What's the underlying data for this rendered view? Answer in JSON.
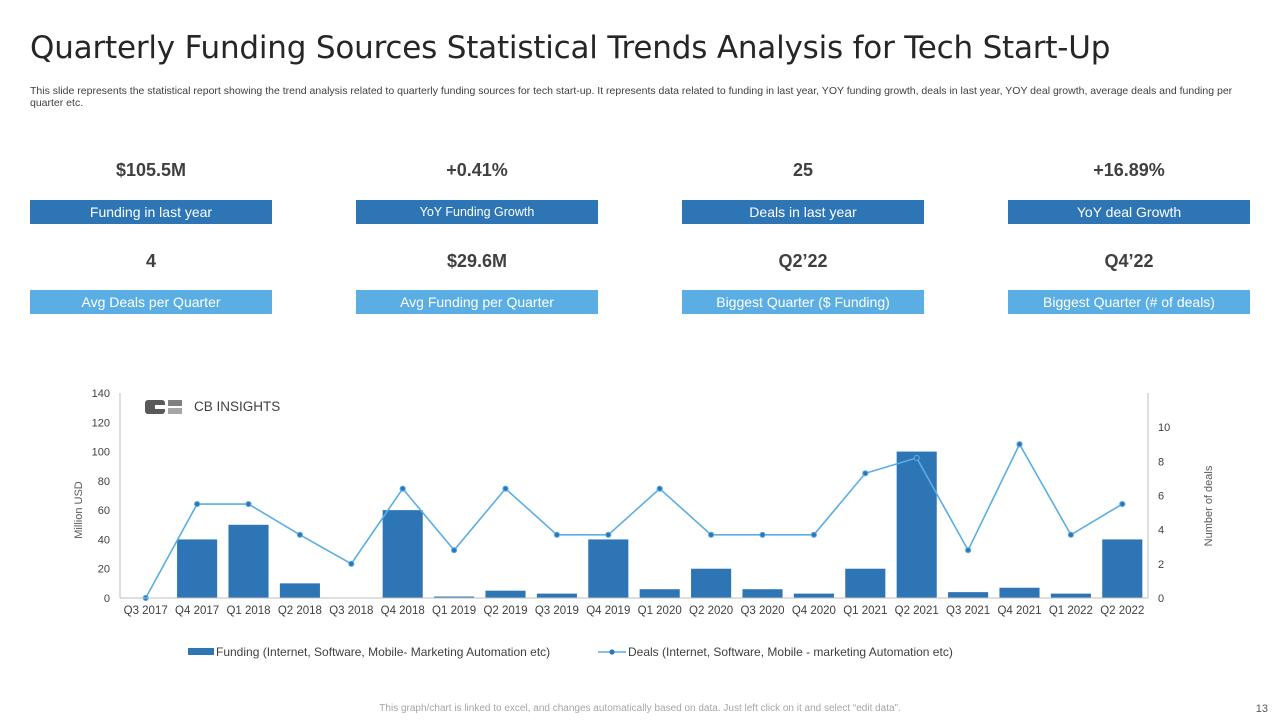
{
  "title": "Quarterly Funding Sources Statistical Trends Analysis for Tech Start-Up",
  "subtitle": "This slide represents the statistical report showing the trend analysis related to quarterly funding sources for tech start-up. It represents data related to funding in last year,  YOY  funding growth, deals in last year,  YOY  deal growth, average deals and funding per quarter etc.",
  "kpis": [
    {
      "value": "$105.5M",
      "label": "Funding in last year"
    },
    {
      "value": "+0.41%",
      "label": "YoY Funding Growth"
    },
    {
      "value": "25",
      "label": "Deals in last year"
    },
    {
      "value": "+16.89%",
      "label": "YoY deal Growth"
    },
    {
      "value": "4",
      "label": "Avg Deals per Quarter"
    },
    {
      "value": "$29.6M",
      "label": "Avg Funding per Quarter"
    },
    {
      "value": "Q2’22",
      "label": "Biggest Quarter ($ Funding)"
    },
    {
      "value": "Q4’22",
      "label": "Biggest Quarter (# of deals)"
    }
  ],
  "colors": {
    "dark_label": "#2e75b6",
    "light_label": "#5aaee3",
    "bar": "#2e75b6",
    "line": "#5aaee3"
  },
  "chart_data": {
    "type": "bar",
    "title": "",
    "brand": "CB INSIGHTS",
    "categories": [
      "Q3 2017",
      "Q4 2017",
      "Q1 2018",
      "Q2 2018",
      "Q3 2018",
      "Q4 2018",
      "Q1 2019",
      "Q2 2019",
      "Q3 2019",
      "Q4 2019",
      "Q1 2020",
      "Q2 2020",
      "Q3 2020",
      "Q4 2020",
      "Q1 2021",
      "Q2 2021",
      "Q3 2021",
      "Q4 2021",
      "Q1 2022",
      "Q2 2022"
    ],
    "series": [
      {
        "name": "Funding (Internet, Software, Mobile- Marketing Automation etc)",
        "type": "bar",
        "axis": "left",
        "values": [
          0,
          40,
          50,
          10,
          0,
          60,
          1,
          5,
          3,
          40,
          6,
          20,
          6,
          3,
          20,
          100,
          4,
          7,
          3,
          40
        ]
      },
      {
        "name": "Deals (Internet, Software, Mobile - marketing Automation etc)",
        "type": "line",
        "axis": "right",
        "values": [
          0,
          5.5,
          5.5,
          3.7,
          2,
          6.4,
          2.8,
          6.4,
          3.7,
          3.7,
          6.4,
          3.7,
          3.7,
          3.7,
          7.3,
          8.2,
          2.8,
          9,
          3.7,
          5.5
        ]
      }
    ],
    "ylabel": "Million USD",
    "ylim": [
      0,
      140
    ],
    "yticks": [
      0,
      20,
      40,
      60,
      80,
      100,
      120,
      140
    ],
    "y2label": "Number of deals",
    "y2lim": [
      0,
      12
    ],
    "y2ticks": [
      0,
      2,
      4,
      6,
      8,
      10
    ],
    "legend": "bottom"
  },
  "footer": "This graph/chart is linked to excel,  and changes automatically based on data. Just left click on it and select “edit data”.",
  "page_number": "13"
}
